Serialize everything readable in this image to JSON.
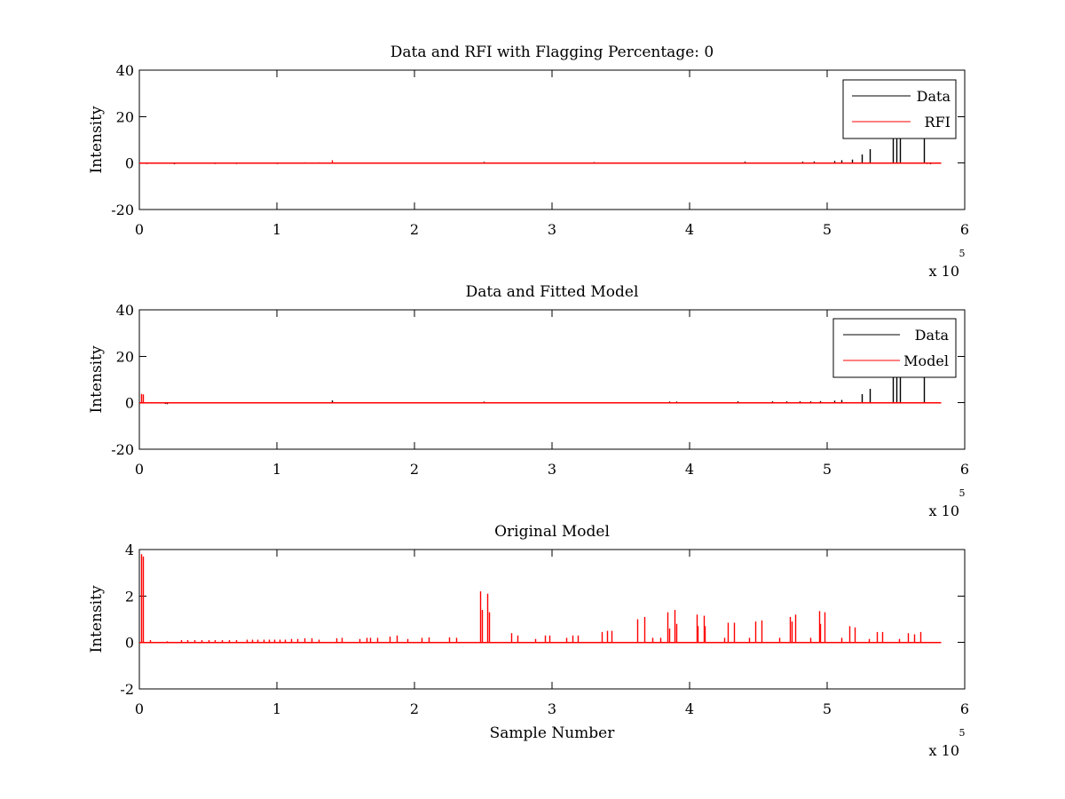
{
  "figure": {
    "background": "#ffffff",
    "colors": {
      "data": "#000000",
      "model": "#ff0000",
      "axes": "#000000"
    }
  },
  "chart_data": [
    {
      "type": "line",
      "title": "Data and RFI with Flagging Percentage: 0",
      "xlabel": "",
      "ylabel": "Intensity",
      "xlim": [
        0,
        600000
      ],
      "ylim": [
        -20,
        40
      ],
      "xticks": [
        0,
        1,
        2,
        3,
        4,
        5,
        6
      ],
      "yticks": [
        -20,
        0,
        20,
        40
      ],
      "x_exponent": {
        "base": "x 10",
        "power": "5"
      },
      "grid": false,
      "legend_position": "top-right",
      "series": [
        {
          "name": "Data",
          "color": "#000000",
          "baseline": 0,
          "x_max": 583000,
          "spikes": [
            [
              5000,
              -0.4
            ],
            [
              15000,
              -0.3
            ],
            [
              25000,
              -0.5
            ],
            [
              40000,
              -0.3
            ],
            [
              55000,
              -0.4
            ],
            [
              70000,
              -0.4
            ],
            [
              85000,
              -0.3
            ],
            [
              100000,
              -0.4
            ],
            [
              110000,
              -0.3
            ],
            [
              120000,
              0.3
            ],
            [
              130000,
              0.3
            ],
            [
              250000,
              0.5
            ],
            [
              330000,
              0.4
            ],
            [
              440000,
              0.6
            ],
            [
              482000,
              0.6
            ],
            [
              490000,
              0.7
            ],
            [
              505000,
              0.9
            ],
            [
              510000,
              1.2
            ],
            [
              518000,
              1.5
            ],
            [
              525000,
              3.7
            ],
            [
              531000,
              6
            ],
            [
              548000,
              11
            ],
            [
              550000,
              11
            ],
            [
              553000,
              11
            ],
            [
              570000,
              11
            ],
            [
              572000,
              -0.4
            ],
            [
              575000,
              -0.5
            ]
          ]
        },
        {
          "name": "RFI",
          "color": "#ff0000",
          "baseline": 0,
          "x_max": 583000,
          "spikes": [
            [
              140000,
              1.2
            ]
          ]
        }
      ]
    },
    {
      "type": "line",
      "title": "Data and Fitted Model",
      "xlabel": "",
      "ylabel": "Intensity",
      "xlim": [
        0,
        600000
      ],
      "ylim": [
        -20,
        40
      ],
      "xticks": [
        0,
        1,
        2,
        3,
        4,
        5,
        6
      ],
      "yticks": [
        -20,
        0,
        20,
        40
      ],
      "x_exponent": {
        "base": "x 10",
        "power": "5"
      },
      "grid": false,
      "legend_position": "top-right",
      "series": [
        {
          "name": "Data",
          "color": "#000000",
          "baseline": 0,
          "x_max": 583000,
          "spikes": [
            [
              19000,
              -0.5
            ],
            [
              20000,
              -0.6
            ],
            [
              140000,
              1.0
            ],
            [
              250000,
              0.5
            ],
            [
              385000,
              0.5
            ],
            [
              390000,
              0.5
            ],
            [
              435000,
              0.6
            ],
            [
              460000,
              0.6
            ],
            [
              470000,
              0.6
            ],
            [
              480000,
              0.6
            ],
            [
              488000,
              0.6
            ],
            [
              495000,
              0.7
            ],
            [
              505000,
              0.9
            ],
            [
              510000,
              1.2
            ],
            [
              525000,
              3.7
            ],
            [
              531000,
              6
            ],
            [
              548000,
              11
            ],
            [
              550000,
              11
            ],
            [
              553000,
              11
            ],
            [
              570000,
              11
            ]
          ]
        },
        {
          "name": "Model",
          "color": "#ff0000",
          "baseline": 0,
          "x_max": 583000,
          "spikes": [
            [
              1000,
              3.8
            ],
            [
              2500,
              3.6
            ],
            [
              250000,
              0.2
            ],
            [
              550000,
              0.1
            ]
          ]
        }
      ]
    },
    {
      "type": "line",
      "title": "Original Model",
      "xlabel": "Sample Number",
      "ylabel": "Intensity",
      "xlim": [
        0,
        600000
      ],
      "ylim": [
        -2,
        4
      ],
      "xticks": [
        0,
        1,
        2,
        3,
        4,
        5,
        6
      ],
      "yticks": [
        -2,
        0,
        2,
        4
      ],
      "x_exponent": {
        "base": "x 10",
        "power": "5"
      },
      "grid": false,
      "legend_position": "none",
      "series": [
        {
          "color": "#ff0000",
          "baseline": 0,
          "x_max": 583000,
          "spikes": [
            [
              1000,
              3.8
            ],
            [
              2500,
              3.7
            ],
            [
              8000,
              0.1
            ],
            [
              20000,
              0.05
            ],
            [
              30000,
              0.1
            ],
            [
              35000,
              0.1
            ],
            [
              40000,
              0.1
            ],
            [
              45000,
              0.1
            ],
            [
              50000,
              0.1
            ],
            [
              55000,
              0.1
            ],
            [
              60000,
              0.1
            ],
            [
              65000,
              0.1
            ],
            [
              70000,
              0.1
            ],
            [
              78000,
              0.12
            ],
            [
              82000,
              0.12
            ],
            [
              86000,
              0.12
            ],
            [
              90000,
              0.12
            ],
            [
              94000,
              0.12
            ],
            [
              98000,
              0.12
            ],
            [
              102000,
              0.12
            ],
            [
              106000,
              0.12
            ],
            [
              110000,
              0.15
            ],
            [
              115000,
              0.15
            ],
            [
              120000,
              0.18
            ],
            [
              125000,
              0.18
            ],
            [
              130000,
              0.12
            ],
            [
              143000,
              0.18
            ],
            [
              147000,
              0.2
            ],
            [
              160000,
              0.15
            ],
            [
              165000,
              0.2
            ],
            [
              168000,
              0.2
            ],
            [
              173000,
              0.2
            ],
            [
              182000,
              0.25
            ],
            [
              187000,
              0.3
            ],
            [
              195000,
              0.15
            ],
            [
              205000,
              0.2
            ],
            [
              210000,
              0.22
            ],
            [
              225000,
              0.22
            ],
            [
              230000,
              0.2
            ],
            [
              248000,
              2.2
            ],
            [
              249000,
              1.4
            ],
            [
              253000,
              2.1
            ],
            [
              254000,
              1.3
            ],
            [
              270000,
              0.4
            ],
            [
              275000,
              0.3
            ],
            [
              288000,
              0.15
            ],
            [
              295000,
              0.3
            ],
            [
              298000,
              0.3
            ],
            [
              310000,
              0.2
            ],
            [
              315000,
              0.3
            ],
            [
              319000,
              0.3
            ],
            [
              336000,
              0.45
            ],
            [
              340000,
              0.5
            ],
            [
              343000,
              0.5
            ],
            [
              362000,
              1.0
            ],
            [
              367000,
              1.1
            ],
            [
              373000,
              0.2
            ],
            [
              379000,
              0.2
            ],
            [
              384000,
              1.3
            ],
            [
              385000,
              0.6
            ],
            [
              389000,
              1.4
            ],
            [
              390000,
              0.8
            ],
            [
              405000,
              1.2
            ],
            [
              406000,
              0.7
            ],
            [
              410000,
              1.15
            ],
            [
              411000,
              0.7
            ],
            [
              425000,
              0.2
            ],
            [
              428000,
              0.85
            ],
            [
              432000,
              0.85
            ],
            [
              443000,
              0.2
            ],
            [
              448000,
              0.9
            ],
            [
              452000,
              0.95
            ],
            [
              465000,
              0.2
            ],
            [
              473000,
              1.1
            ],
            [
              474000,
              0.9
            ],
            [
              477000,
              1.2
            ],
            [
              488000,
              0.2
            ],
            [
              494000,
              1.35
            ],
            [
              495000,
              0.8
            ],
            [
              498000,
              1.3
            ],
            [
              510000,
              0.2
            ],
            [
              516000,
              0.7
            ],
            [
              520000,
              0.65
            ],
            [
              530000,
              0.15
            ],
            [
              536000,
              0.45
            ],
            [
              540000,
              0.45
            ],
            [
              552000,
              0.15
            ],
            [
              559000,
              0.4
            ],
            [
              563000,
              0.35
            ],
            [
              568000,
              0.45
            ]
          ]
        }
      ]
    }
  ]
}
